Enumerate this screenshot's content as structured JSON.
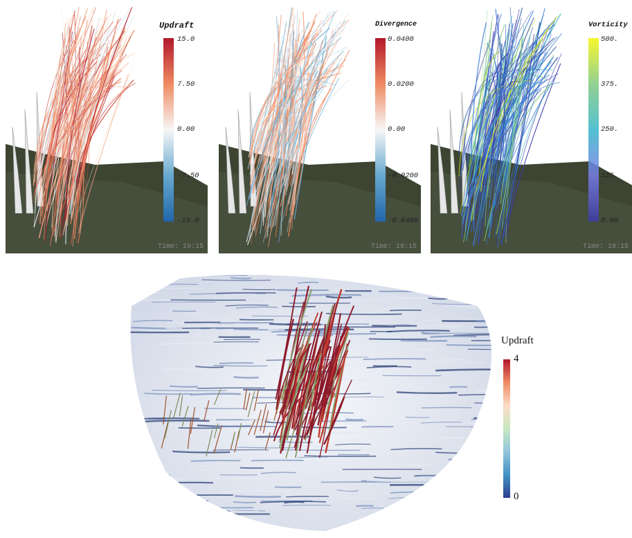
{
  "panels": [
    {
      "id": "updraft",
      "colorbar_title": "Updraft",
      "ticks": [
        "15.0",
        "7.50",
        "0.00",
        "-7.50",
        "-15.0"
      ],
      "colors": [
        "#b2182b",
        "#ef8a62",
        "#f7f7f7",
        "#67a9cf",
        "#2166ac"
      ],
      "timestamp": "Time: 19:15"
    },
    {
      "id": "divergence",
      "colorbar_title": "Divergence",
      "ticks": [
        "0.0400",
        "0.0200",
        "0.00",
        "-0.0200",
        "-0.0400"
      ],
      "colors": [
        "#b2182b",
        "#ef8a62",
        "#f7f7f7",
        "#67a9cf",
        "#2166ac"
      ],
      "timestamp": "Time: 19:15"
    },
    {
      "id": "vorticity",
      "colorbar_title": "Vorticity",
      "ticks": [
        "500.",
        "375.",
        "250.",
        "125.",
        "0.00"
      ],
      "colors": [
        "#f5f50a",
        "#7fc97f",
        "#35b5c9",
        "#7a7ee8",
        "#3b3ba8"
      ],
      "timestamp": "Time: 19:15"
    }
  ],
  "bottom": {
    "colorbar_title": "Updraft",
    "tick_max": "4",
    "tick_min": "0"
  }
}
